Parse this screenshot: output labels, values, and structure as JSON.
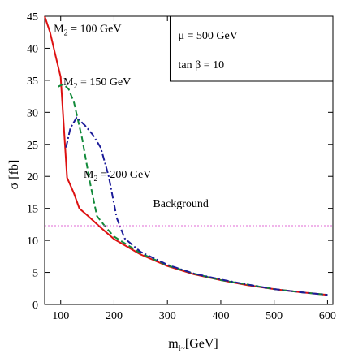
{
  "chart_data": {
    "type": "line",
    "title": "",
    "xlabel": "m",
    "xlabel_sub": "l~",
    "xlabel_unit": "[GeV]",
    "ylabel": "σ  [fb]",
    "xlim": [
      70,
      610
    ],
    "ylim": [
      0,
      45
    ],
    "xticks": [
      100,
      200,
      300,
      400,
      500,
      600
    ],
    "yticks": [
      0,
      5,
      10,
      15,
      20,
      25,
      30,
      35,
      40,
      45
    ],
    "grid": false,
    "series": [
      {
        "name": "M2 = 100 GeV",
        "label_main": "M",
        "label_sub": "2",
        "label_rest": " = 100 GeV",
        "label_at": [
          87,
          42.5
        ],
        "color": "#dd1111",
        "dash": "",
        "points": [
          [
            70,
            45
          ],
          [
            80,
            42.5
          ],
          [
            90,
            39
          ],
          [
            100,
            35.5
          ],
          [
            112,
            19.8
          ],
          [
            125,
            17.3
          ],
          [
            135,
            15
          ],
          [
            150,
            13.9
          ],
          [
            175,
            12
          ],
          [
            200,
            10.2
          ],
          [
            250,
            7.8
          ],
          [
            300,
            6.0
          ],
          [
            350,
            4.7
          ],
          [
            400,
            3.8
          ],
          [
            450,
            3.0
          ],
          [
            500,
            2.4
          ],
          [
            550,
            1.9
          ],
          [
            600,
            1.5
          ]
        ]
      },
      {
        "name": "M2 = 150 GeV",
        "label_main": "M",
        "label_sub": "2",
        "label_rest": " = 150 GeV",
        "label_at": [
          105,
          34.2
        ],
        "color": "#128a3a",
        "dash": "7,4",
        "points": [
          [
            95,
            34
          ],
          [
            105,
            34.4
          ],
          [
            115,
            33.6
          ],
          [
            125,
            31.5
          ],
          [
            140,
            26
          ],
          [
            155,
            19
          ],
          [
            168,
            13.8
          ],
          [
            185,
            12
          ],
          [
            200,
            10.6
          ],
          [
            250,
            8.0
          ],
          [
            300,
            6.1
          ],
          [
            350,
            4.8
          ],
          [
            400,
            3.8
          ],
          [
            450,
            3.1
          ],
          [
            500,
            2.4
          ],
          [
            550,
            1.9
          ],
          [
            600,
            1.5
          ]
        ]
      },
      {
        "name": "M2 = 200 GeV",
        "label_main": "M",
        "label_sub": "2",
        "label_rest": " = 200 GeV",
        "label_at": [
          143,
          19.8
        ],
        "color": "#1c1c99",
        "dash": "8,3,2,3",
        "points": [
          [
            110,
            24.5
          ],
          [
            118,
            27.5
          ],
          [
            130,
            29.2
          ],
          [
            145,
            28
          ],
          [
            160,
            26.5
          ],
          [
            175,
            24.5
          ],
          [
            190,
            20
          ],
          [
            205,
            13.5
          ],
          [
            220,
            10.3
          ],
          [
            250,
            8.2
          ],
          [
            300,
            6.2
          ],
          [
            350,
            4.8
          ],
          [
            400,
            3.9
          ],
          [
            450,
            3.1
          ],
          [
            500,
            2.4
          ],
          [
            550,
            1.9
          ],
          [
            600,
            1.5
          ]
        ]
      },
      {
        "name": "Background",
        "label_main": "Background",
        "label_at": [
          273,
          15.2
        ],
        "color": "#e26ad6",
        "dash": "2,2",
        "points": [
          [
            70,
            12.3
          ],
          [
            610,
            12.3
          ]
        ]
      }
    ],
    "legend_box": {
      "placement": "top-right",
      "lines": [
        "μ = 500 GeV",
        "tan β = 10"
      ]
    }
  }
}
